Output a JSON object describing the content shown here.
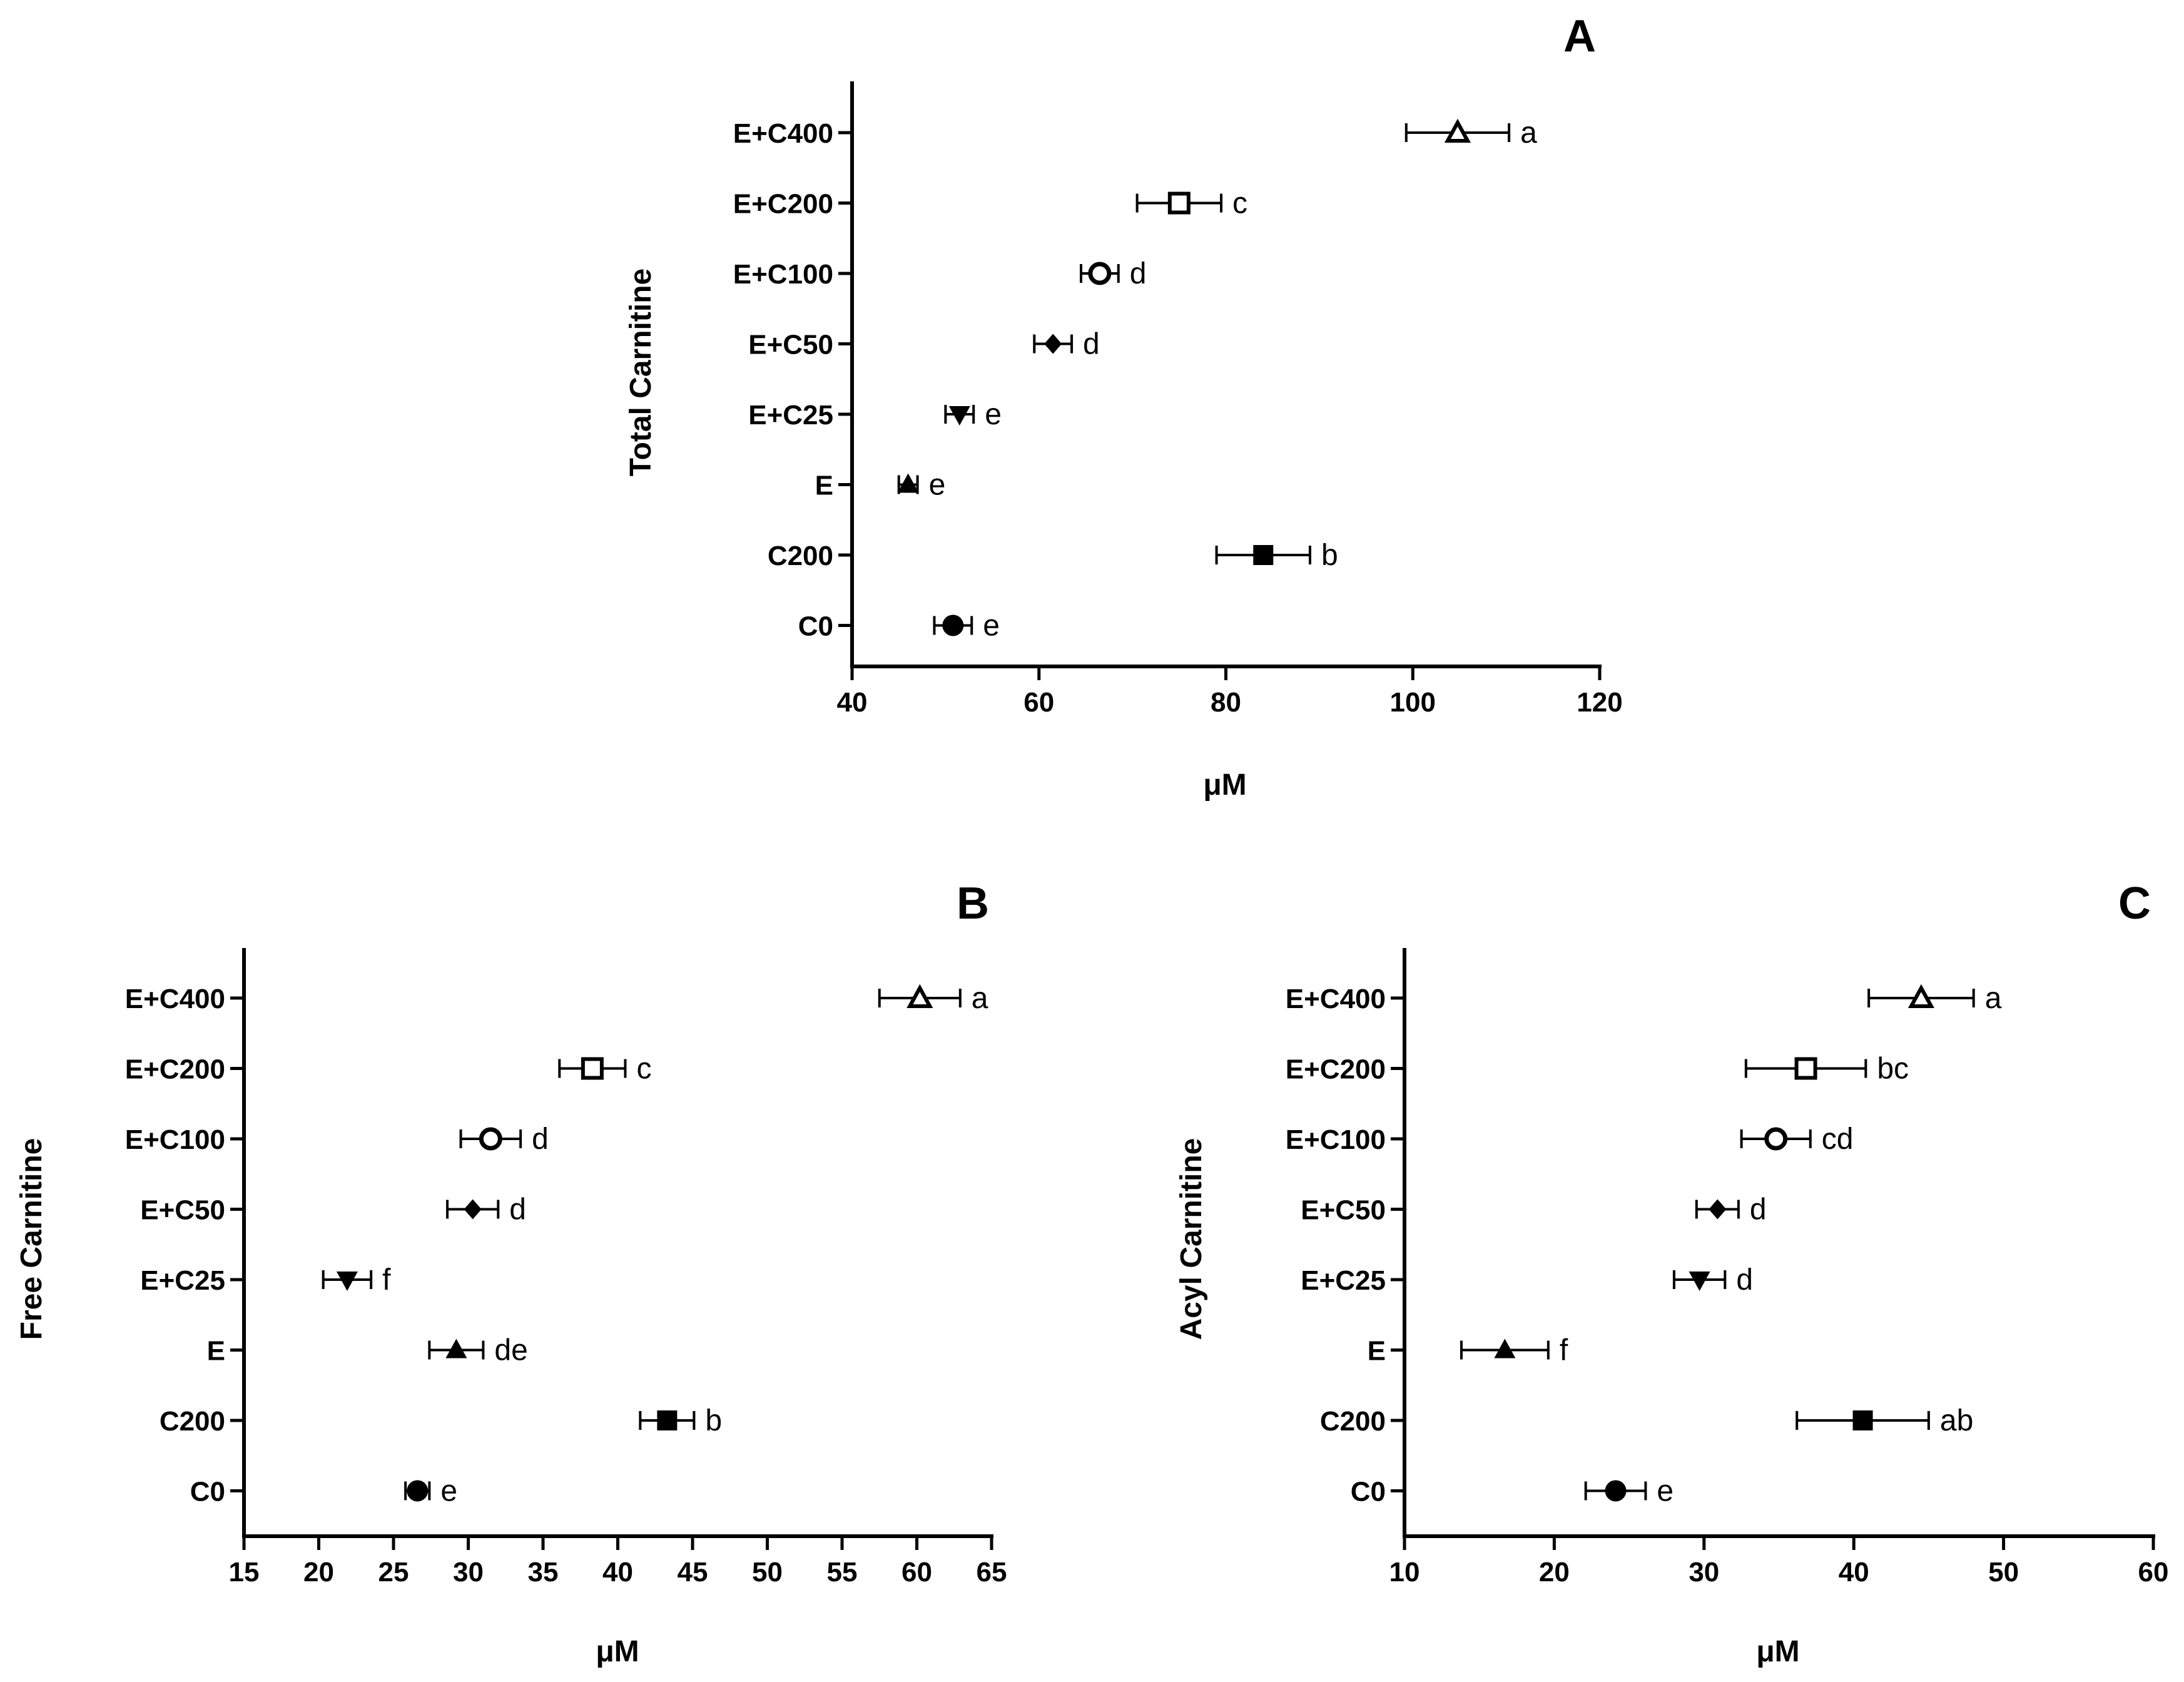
{
  "chart_data": [
    {
      "id": "A",
      "type": "scatter",
      "title": "A",
      "xlabel": "μM",
      "ylabel": "Total Carnitine",
      "xlim": [
        40,
        120
      ],
      "xticks": [
        40,
        60,
        80,
        100,
        120
      ],
      "grid": false,
      "points": [
        {
          "label": "E+C400",
          "value": 104.8,
          "error": 5.5,
          "marker": "triangle-up-open",
          "letter": "a"
        },
        {
          "label": "E+C200",
          "value": 75.0,
          "error": 4.5,
          "marker": "square-open",
          "letter": "c"
        },
        {
          "label": "E+C100",
          "value": 66.5,
          "error": 2.0,
          "marker": "circle-open",
          "letter": "d"
        },
        {
          "label": "E+C50",
          "value": 61.5,
          "error": 2.0,
          "marker": "diamond",
          "letter": "d"
        },
        {
          "label": "E+C25",
          "value": 51.5,
          "error": 1.5,
          "marker": "triangle-down",
          "letter": "e"
        },
        {
          "label": "E",
          "value": 46.0,
          "error": 1.0,
          "marker": "triangle-up",
          "letter": "e"
        },
        {
          "label": "C200",
          "value": 84.0,
          "error": 5.0,
          "marker": "square",
          "letter": "b"
        },
        {
          "label": "C0",
          "value": 50.8,
          "error": 2.0,
          "marker": "circle",
          "letter": "e"
        }
      ]
    },
    {
      "id": "B",
      "type": "scatter",
      "title": "B",
      "xlabel": "μM",
      "ylabel": "Free Carnitine",
      "xlim": [
        15,
        65
      ],
      "xticks": [
        15,
        20,
        25,
        30,
        35,
        40,
        45,
        50,
        55,
        60,
        65
      ],
      "grid": false,
      "points": [
        {
          "label": "E+C400",
          "value": 60.2,
          "error": 2.7,
          "marker": "triangle-up-open",
          "letter": "a"
        },
        {
          "label": "E+C200",
          "value": 38.3,
          "error": 2.2,
          "marker": "square-open",
          "letter": "c"
        },
        {
          "label": "E+C100",
          "value": 31.5,
          "error": 2.0,
          "marker": "circle-open",
          "letter": "d"
        },
        {
          "label": "E+C50",
          "value": 30.3,
          "error": 1.7,
          "marker": "diamond",
          "letter": "d"
        },
        {
          "label": "E+C25",
          "value": 21.9,
          "error": 1.6,
          "marker": "triangle-down",
          "letter": "f"
        },
        {
          "label": "E",
          "value": 29.2,
          "error": 1.8,
          "marker": "triangle-up",
          "letter": "de"
        },
        {
          "label": "C200",
          "value": 43.3,
          "error": 1.8,
          "marker": "square",
          "letter": "b"
        },
        {
          "label": "C0",
          "value": 26.6,
          "error": 0.8,
          "marker": "circle",
          "letter": "e"
        }
      ]
    },
    {
      "id": "C",
      "type": "scatter",
      "title": "C",
      "xlabel": "μM",
      "ylabel": "Acyl Carnitine",
      "xlim": [
        10,
        60
      ],
      "xticks": [
        10,
        20,
        30,
        40,
        50,
        60
      ],
      "grid": false,
      "points": [
        {
          "label": "E+C400",
          "value": 44.5,
          "error": 3.5,
          "marker": "triangle-up-open",
          "letter": "a"
        },
        {
          "label": "E+C200",
          "value": 36.8,
          "error": 4.0,
          "marker": "square-open",
          "letter": "bc"
        },
        {
          "label": "E+C100",
          "value": 34.8,
          "error": 2.3,
          "marker": "circle-open",
          "letter": "cd"
        },
        {
          "label": "E+C50",
          "value": 30.9,
          "error": 1.4,
          "marker": "diamond",
          "letter": "d"
        },
        {
          "label": "E+C25",
          "value": 29.7,
          "error": 1.7,
          "marker": "triangle-down",
          "letter": "d"
        },
        {
          "label": "E",
          "value": 16.7,
          "error": 2.9,
          "marker": "triangle-up",
          "letter": "f"
        },
        {
          "label": "C200",
          "value": 40.6,
          "error": 4.4,
          "marker": "square",
          "letter": "ab"
        },
        {
          "label": "C0",
          "value": 24.1,
          "error": 2.0,
          "marker": "circle",
          "letter": "e"
        }
      ]
    }
  ]
}
